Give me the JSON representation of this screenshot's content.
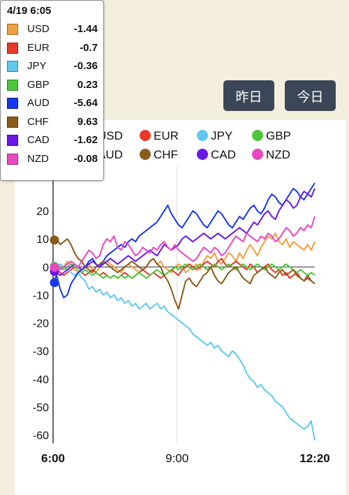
{
  "nav": {
    "yesterday_label": "昨日",
    "today_label": "今日"
  },
  "tooltip": {
    "time": "4/19 6:05",
    "rows": [
      {
        "name": "USD",
        "value": "-1.44",
        "color": "#f0a040"
      },
      {
        "name": "EUR",
        "value": "-0.7",
        "color": "#e8382a"
      },
      {
        "name": "JPY",
        "value": "-0.36",
        "color": "#5ec8f0"
      },
      {
        "name": "GBP",
        "value": "0.23",
        "color": "#4cc63a"
      },
      {
        "name": "AUD",
        "value": "-5.64",
        "color": "#1838f0"
      },
      {
        "name": "CHF",
        "value": "9.63",
        "color": "#8a5a1a"
      },
      {
        "name": "CAD",
        "value": "-1.62",
        "color": "#6a18e8"
      },
      {
        "name": "NZD",
        "value": "-0.08",
        "color": "#e848c0"
      }
    ]
  },
  "chart_data": {
    "type": "line",
    "ylim": [
      -63,
      32
    ],
    "yticks": [
      20,
      10,
      0,
      -10,
      -20,
      -30,
      -40,
      -50,
      -60
    ],
    "xticks": [
      "6:00",
      "9:00",
      "12:20"
    ],
    "legend_position": "top",
    "grid": "vertical at 9:00, horizontal at 0",
    "x_range": [
      "6:00",
      "12:20"
    ],
    "series": [
      {
        "name": "USD",
        "color": "#f0a040",
        "values": [
          -1.4,
          -1,
          1,
          0,
          2,
          1,
          -1,
          -2,
          -1,
          0,
          1,
          -1,
          -2,
          0,
          1,
          2,
          1,
          0,
          -1,
          -2,
          0,
          1,
          0,
          -1,
          -2,
          -1,
          0,
          2,
          3,
          1,
          2,
          0,
          -1,
          -2,
          0,
          1,
          0,
          -2,
          -1,
          0,
          1,
          -1,
          2,
          4,
          3,
          5,
          2,
          1,
          3,
          5,
          4,
          2,
          5,
          3,
          6,
          8,
          6,
          4,
          7,
          9,
          11,
          10,
          12,
          9,
          8,
          10,
          7,
          9,
          8,
          7,
          6,
          8,
          6,
          9
        ]
      },
      {
        "name": "EUR",
        "color": "#e8382a",
        "values": [
          -0.7,
          -1,
          -2,
          -3,
          -2,
          -1,
          0,
          -1,
          -2,
          -3,
          -2,
          -1,
          -2,
          -3,
          -2,
          -3,
          -4,
          -3,
          -4,
          -3,
          -2,
          -3,
          -4,
          -3,
          -2,
          -1,
          -2,
          -3,
          -2,
          -3,
          -4,
          -3,
          -2,
          -1,
          -2,
          -3,
          -1,
          0,
          1,
          0,
          -1,
          0,
          1,
          2,
          1,
          0,
          2,
          3,
          1,
          0,
          1,
          2,
          1,
          0,
          -1,
          1,
          0,
          -2,
          -1,
          0,
          1,
          -1,
          -2,
          -1,
          -3,
          -2,
          -4,
          -3,
          -2,
          -4,
          -5,
          -4,
          -5,
          -6
        ]
      },
      {
        "name": "JPY",
        "color": "#5ec8f0",
        "values": [
          -0.4,
          0,
          1,
          0,
          -1,
          -2,
          -3,
          -2,
          -4,
          -5,
          -8,
          -7,
          -9,
          -8,
          -10,
          -9,
          -11,
          -10,
          -12,
          -11,
          -13,
          -12,
          -14,
          -13,
          -15,
          -14,
          -13,
          -15,
          -14,
          -13,
          -15,
          -14,
          -16,
          -17,
          -18,
          -19,
          -20,
          -21,
          -22,
          -24,
          -25,
          -26,
          -27,
          -28,
          -27,
          -29,
          -28,
          -30,
          -31,
          -32,
          -30,
          -31,
          -33,
          -35,
          -38,
          -40,
          -41,
          -43,
          -42,
          -44,
          -45,
          -46,
          -48,
          -49,
          -50,
          -52,
          -54,
          -55,
          -56,
          -57,
          -58,
          -57,
          -55,
          -62
        ]
      },
      {
        "name": "GBP",
        "color": "#4cc63a",
        "values": [
          0.2,
          1,
          0,
          -1,
          0,
          1,
          0,
          -1,
          -2,
          -1,
          -2,
          -3,
          -2,
          -3,
          -4,
          -3,
          -4,
          -3,
          -4,
          -3,
          -4,
          -3,
          -4,
          -3,
          -2,
          -3,
          -4,
          -3,
          -2,
          -1,
          -2,
          -3,
          -2,
          -1,
          0,
          -1,
          0,
          1,
          0,
          -1,
          0,
          1,
          0,
          -1,
          0,
          1,
          0,
          -1,
          0,
          1,
          0,
          -1,
          0,
          1,
          0,
          -1,
          0,
          1,
          0,
          -1,
          0,
          1,
          0,
          -1,
          0,
          1,
          0,
          -1,
          -2,
          -1,
          -2,
          -3,
          -2,
          -3
        ]
      },
      {
        "name": "AUD",
        "color": "#1838f0",
        "values": [
          -5.6,
          -3,
          -8,
          -11,
          -10,
          -6,
          -4,
          -2,
          -1,
          0,
          2,
          3,
          1,
          0,
          2,
          4,
          5,
          6,
          7,
          8,
          7,
          9,
          10,
          9,
          11,
          12,
          13,
          14,
          15,
          16,
          18,
          20,
          22,
          19,
          17,
          15,
          14,
          16,
          18,
          20,
          19,
          17,
          15,
          14,
          16,
          18,
          20,
          19,
          17,
          15,
          14,
          16,
          18,
          17,
          19,
          21,
          22,
          20,
          19,
          21,
          24,
          26,
          25,
          23,
          22,
          24,
          26,
          28,
          27,
          25,
          24,
          26,
          28,
          30
        ]
      },
      {
        "name": "CHF",
        "color": "#8a5a1a",
        "values": [
          9.6,
          10,
          8,
          9,
          10,
          8,
          5,
          3,
          2,
          0,
          -1,
          -2,
          0,
          1,
          2,
          1,
          0,
          -1,
          -2,
          -1,
          0,
          1,
          2,
          1,
          0,
          -1,
          0,
          2,
          3,
          1,
          0,
          -3,
          -5,
          -8,
          -12,
          -15,
          -10,
          -5,
          -4,
          -6,
          -7,
          -5,
          -3,
          -2,
          0,
          -3,
          -5,
          -6,
          -4,
          -2,
          -1,
          0,
          -2,
          -4,
          -5,
          -6,
          -3,
          -2,
          -1,
          0,
          -2,
          -3,
          -4,
          -2,
          -1,
          -3,
          -2,
          -1,
          -3,
          -4,
          -5,
          -3,
          -5,
          -6
        ]
      },
      {
        "name": "CAD",
        "color": "#6a18e8",
        "values": [
          -1.6,
          -2,
          -3,
          -2,
          -1,
          0,
          1,
          0,
          -1,
          0,
          1,
          2,
          1,
          0,
          1,
          2,
          3,
          2,
          1,
          2,
          3,
          4,
          3,
          2,
          3,
          4,
          5,
          6,
          5,
          4,
          6,
          8,
          7,
          6,
          7,
          8,
          10,
          11,
          10,
          9,
          10,
          11,
          12,
          11,
          10,
          11,
          12,
          11,
          10,
          11,
          12,
          13,
          14,
          13,
          12,
          14,
          16,
          15,
          17,
          19,
          20,
          18,
          17,
          20,
          22,
          24,
          23,
          21,
          22,
          25,
          27,
          26,
          25,
          28
        ]
      },
      {
        "name": "NZD",
        "color": "#e848c0",
        "values": [
          -0.1,
          1,
          -1,
          0,
          1,
          2,
          1,
          0,
          2,
          4,
          6,
          5,
          3,
          4,
          8,
          10,
          9,
          11,
          7,
          6,
          9,
          8,
          6,
          4,
          5,
          7,
          6,
          5,
          7,
          6,
          8,
          9,
          7,
          6,
          8,
          6,
          5,
          4,
          3,
          2,
          3,
          5,
          7,
          6,
          5,
          7,
          6,
          4,
          5,
          7,
          9,
          11,
          10,
          9,
          12,
          11,
          10,
          9,
          11,
          10,
          12,
          11,
          9,
          10,
          12,
          14,
          13,
          11,
          12,
          14,
          13,
          15,
          14,
          18
        ]
      }
    ]
  }
}
